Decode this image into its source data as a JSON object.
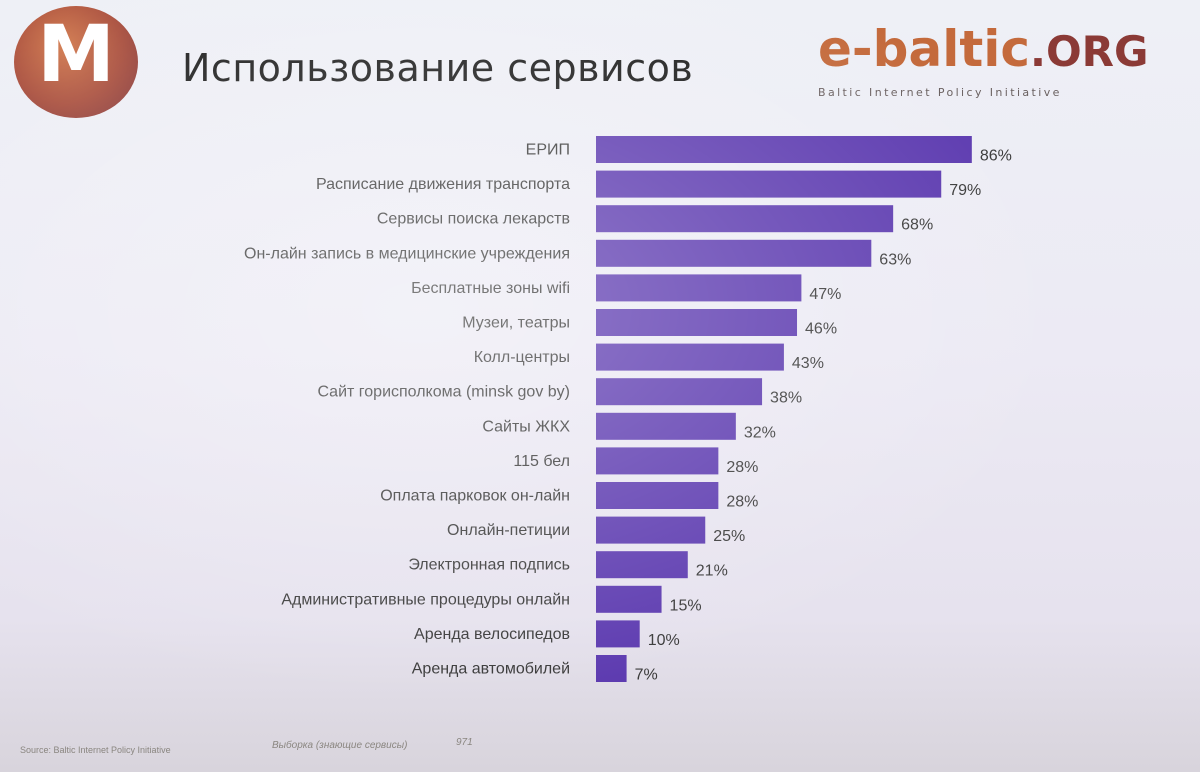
{
  "header": {
    "logo_letter": "M",
    "title": "Использование сервисов",
    "brand_main": "e-baltic",
    "brand_suffix": ".ORG",
    "brand_tagline": "Baltic Internet Policy Initiative"
  },
  "footer": {
    "source": "Source: Baltic Internet Policy Initiative",
    "sample_note": "Выборка (знающие сервисы)",
    "sample_size": "971"
  },
  "colors": {
    "bar": "#5d3bb0",
    "title": "#1c1c1c",
    "brand": "#c46a3c",
    "brand_suffix": "#8b3a36"
  },
  "chart_data": {
    "type": "bar",
    "orientation": "horizontal",
    "title": "Использование сервисов",
    "categories": [
      "ЕРИП",
      "Расписание движения транспорта",
      "Сервисы поиска лекарств",
      "Он-лайн запись в медицинские учреждения",
      "Бесплатные зоны wifi",
      "Музеи,  театры",
      "Колл-центры",
      "Сайт горисполкома (minsk gov by)",
      "Сайты ЖКХ",
      "115 бел",
      "Оплата парковок он-лайн",
      "Онлайн-петиции",
      "Электронная подпись",
      "Административные процедуры онлайн",
      "Аренда велосипедов",
      "Аренда автомобилей"
    ],
    "values": [
      86,
      79,
      68,
      63,
      47,
      46,
      43,
      38,
      32,
      28,
      28,
      25,
      21,
      15,
      10,
      7
    ],
    "value_labels": [
      "86%",
      "79%",
      "68%",
      "63%",
      "47%",
      "46%",
      "43%",
      "38%",
      "32%",
      "28%",
      "28%",
      "25%",
      "21%",
      "15%",
      "10%",
      "7%"
    ],
    "xlim": [
      0,
      100
    ],
    "grid": false,
    "legend": "none"
  }
}
